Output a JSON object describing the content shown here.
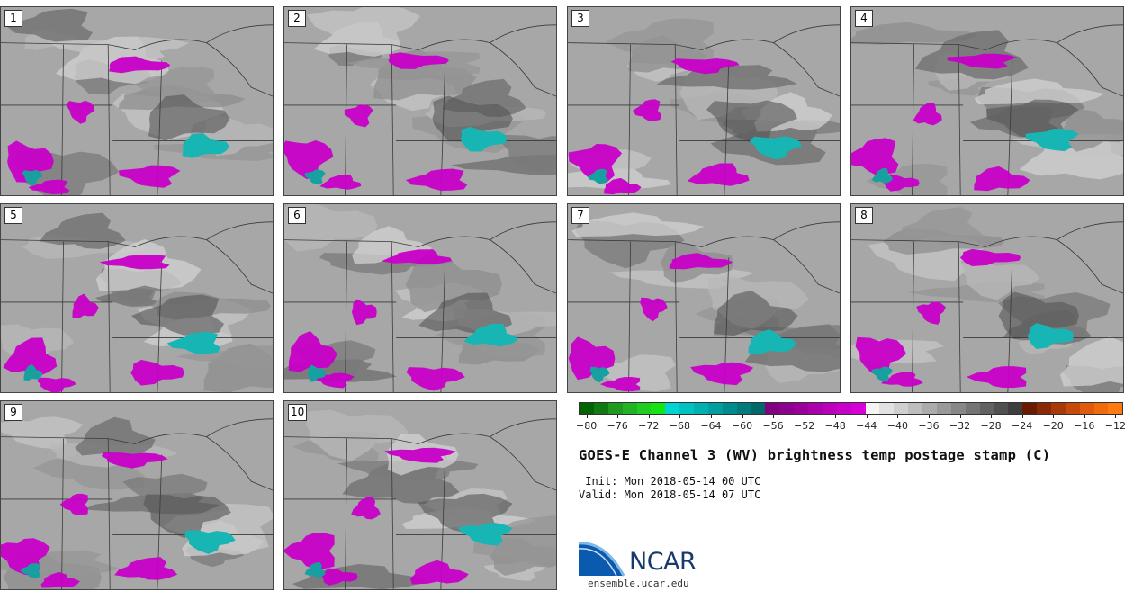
{
  "figure": {
    "title": "GOES-E Channel 3 (WV) brightness temp postage stamp (C)",
    "init": " Init: Mon 2018-05-14 00 UTC",
    "valid": "Valid: Mon 2018-05-14 07 UTC",
    "logo_text": "NCAR",
    "logo_url": "ensemble.ucar.edu"
  },
  "panels": [
    {
      "label": "1"
    },
    {
      "label": "2"
    },
    {
      "label": "3"
    },
    {
      "label": "4"
    },
    {
      "label": "5"
    },
    {
      "label": "6"
    },
    {
      "label": "7"
    },
    {
      "label": "8"
    },
    {
      "label": "9"
    },
    {
      "label": "10"
    }
  ],
  "colorbar": {
    "ticks": [
      "−80",
      "−76",
      "−72",
      "−68",
      "−64",
      "−60",
      "−56",
      "−52",
      "−48",
      "−44",
      "−40",
      "−36",
      "−32",
      "−28",
      "−24",
      "−20",
      "−16",
      "−12"
    ],
    "range": [
      -81,
      -11
    ],
    "colors": [
      "#006400",
      "#117a11",
      "#1f9a1f",
      "#22b322",
      "#1fcc1f",
      "#14e314",
      "#00d3d3",
      "#00c2c2",
      "#00b0b0",
      "#009e9e",
      "#008c8c",
      "#007a7a",
      "#006868",
      "#800080",
      "#8e008e",
      "#9c009c",
      "#ab00ab",
      "#ba00ba",
      "#c800c8",
      "#d700d7",
      "#f4f4f4",
      "#e2e2e2",
      "#cfcfcf",
      "#bdbdbd",
      "#ababab",
      "#999999",
      "#878787",
      "#747474",
      "#626262",
      "#505050",
      "#3e3e3e",
      "#6a1a00",
      "#8a2a05",
      "#a83a08",
      "#c84a0a",
      "#e05a0c",
      "#f06a0e",
      "#ff7a10"
    ]
  }
}
